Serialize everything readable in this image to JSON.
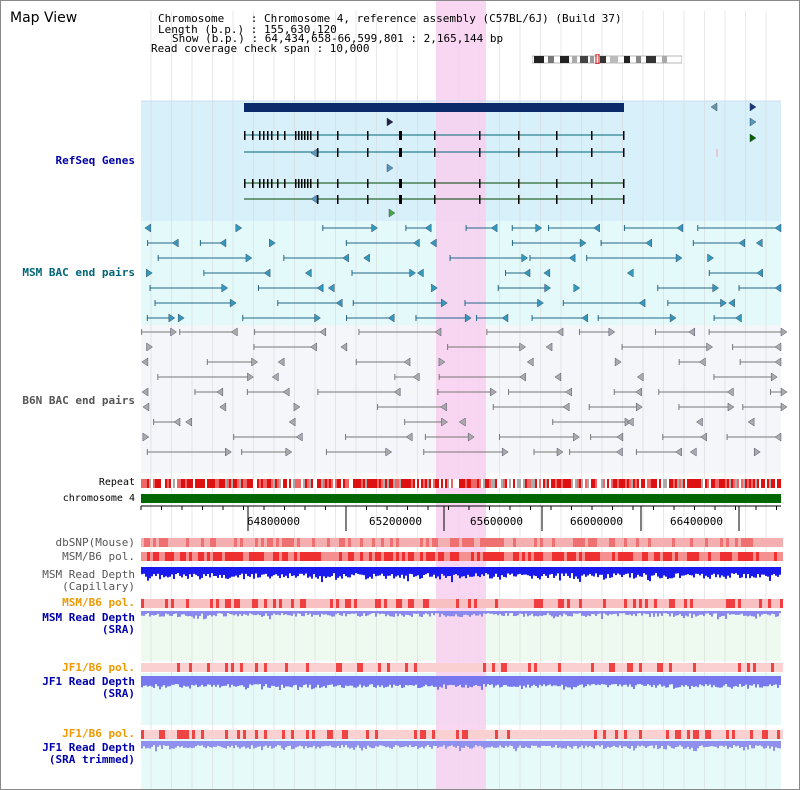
{
  "header": {
    "title": "Map View",
    "info_lines": [
      "Chromosome    : Chromosome 4, reference assembly (C57BL/6J) (Build 37)",
      "Length (b.p.) : 155,630,120",
      "Show (b.p.) : 64,434,658-66,599,801 : 2,165,144 bp",
      "Read coverage check span : 10,000"
    ]
  },
  "tracks": {
    "refseq": "RefSeq Genes",
    "msm_bac": "MSM BAC end pairs",
    "b6n_bac": "B6N BAC end pairs",
    "repeat": "Repeat",
    "chromosome": "chromosome 4",
    "dbsnp": "dbSNP(Mouse)",
    "msm_b6_pol_1": "MSM/B6 pol.",
    "msm_depth_cap_1": "MSM Read Depth",
    "msm_depth_cap_2": "(Capillary)",
    "msm_b6_pol_2": "MSM/B6 pol.",
    "msm_depth_sra_1": "MSM Read Depth",
    "msm_depth_sra_2": "(SRA)",
    "jf1_b6_pol_1": "JF1/B6 pol.",
    "jf1_depth_sra_1": "JF1 Read Depth",
    "jf1_depth_sra_2": "(SRA)",
    "jf1_b6_pol_2": "JF1/B6 pol.",
    "jf1_depth_trim_1": "JF1 Read Depth",
    "jf1_depth_trim_2": "(SRA trimmed)"
  },
  "axis": {
    "ticks": [
      "64800000",
      "65200000",
      "65600000",
      "66000000",
      "66400000"
    ]
  },
  "colors": {
    "refseq_label": "#0000aa",
    "msm_label": "#006677",
    "b6n_label": "#555555",
    "pol_label": "#ee9900",
    "depth_label": "#0000aa",
    "gene_bar": "#0a2a6a",
    "chrom_bar": "#006600",
    "highlight": "#f8d0f0",
    "refseq_bg": "#d8f0fa",
    "msm_bg": "#e4fafa",
    "b6n_bg": "#f4f6fa"
  }
}
